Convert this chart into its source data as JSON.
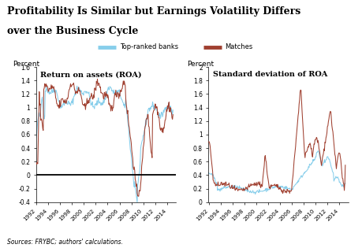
{
  "title_line1": "Profitability Is Similar but Earnings Volatility Differs",
  "title_line2": "over the Business Cycle",
  "legend_labels": [
    "Top-ranked banks",
    "Matches"
  ],
  "color_blue": "#87CEEB",
  "color_red": "#A04030",
  "left_ylabel": "Percent",
  "right_ylabel": "Percent",
  "left_title": "Return on assets (ROA)",
  "right_title": "Standard deviation of ROA",
  "left_ylim": [
    -0.4,
    1.6
  ],
  "right_ylim": [
    0,
    2.0
  ],
  "left_yticks": [
    -0.4,
    -0.2,
    0,
    0.2,
    0.4,
    0.6,
    0.8,
    1.0,
    1.2,
    1.4,
    1.6
  ],
  "right_yticks": [
    0,
    0.2,
    0.4,
    0.6,
    0.8,
    1.0,
    1.2,
    1.4,
    1.6,
    1.8,
    2.0
  ],
  "xtick_years": [
    1992,
    1994,
    1996,
    1998,
    2000,
    2002,
    2004,
    2006,
    2008,
    2010,
    2012,
    2014
  ],
  "source_text": "Sources: FRYBC; authors' calculations."
}
